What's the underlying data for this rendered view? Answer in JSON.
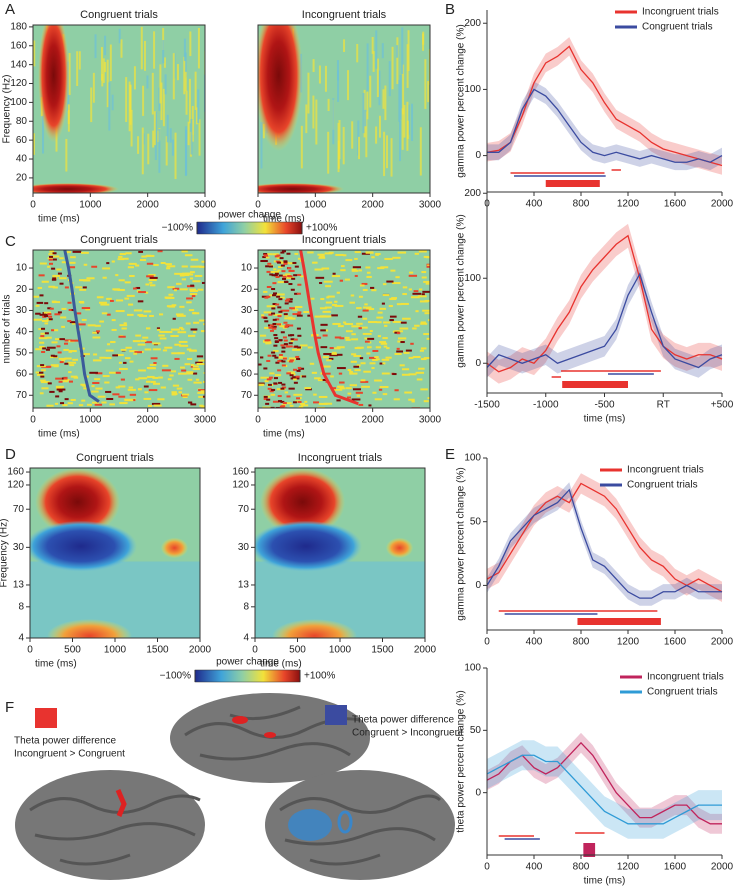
{
  "chart_data": [
    {
      "type": "heatmap",
      "panel": "A",
      "title": "Congruent trials",
      "ylabel": "Frequency (Hz)",
      "xlabel": "time (ms)",
      "xlim": [
        0,
        3000
      ],
      "xticks": [
        0,
        1000,
        2000,
        3000
      ],
      "ylim": [
        4,
        182
      ],
      "yticks": [
        20,
        40,
        60,
        80,
        100,
        120,
        140,
        160,
        180
      ]
    },
    {
      "type": "heatmap",
      "title": "Incongruent trials",
      "xlabel": "time (ms)",
      "xlim": [
        0,
        3000
      ],
      "xticks": [
        0,
        1000,
        2000,
        3000
      ],
      "ylim": [
        4,
        182
      ],
      "colorbar": {
        "title": "power change",
        "ticks": [
          {
            "value": -100,
            "label": "−100%"
          },
          {
            "value": 100,
            "label": "+100%"
          }
        ]
      }
    },
    {
      "type": "line",
      "panel": "B",
      "ylabel": "gamma power percent change (%)",
      "x": [
        0,
        100,
        200,
        300,
        400,
        500,
        600,
        700,
        800,
        900,
        1000,
        1100,
        1200,
        1300,
        1400,
        1500,
        1600,
        1700,
        1800,
        1900,
        2000
      ],
      "xlim": [
        0,
        2000
      ],
      "xticks": [
        0,
        400,
        800,
        1200,
        1600,
        2000
      ],
      "ylim": [
        -55,
        220
      ],
      "yticks": [
        0,
        100,
        200
      ],
      "series": [
        {
          "name": "Incongruent trials",
          "color": "#e8332f",
          "ci": 14,
          "values": [
            5,
            8,
            20,
            60,
            110,
            140,
            150,
            165,
            130,
            110,
            80,
            55,
            45,
            35,
            20,
            10,
            5,
            0,
            -5,
            -10,
            -15
          ]
        },
        {
          "name": "Congruent trials",
          "color": "#3b4ba0",
          "ci": 12,
          "values": [
            5,
            5,
            20,
            70,
            100,
            90,
            70,
            45,
            20,
            5,
            0,
            5,
            0,
            -5,
            0,
            -5,
            -10,
            -10,
            -5,
            -10,
            0
          ]
        }
      ],
      "intervals": [
        {
          "color": "#3b4ba0",
          "start": 230,
          "end": 1010,
          "thick": false
        },
        {
          "color": "#e8332f",
          "start": 200,
          "end": 1000,
          "thick": false
        },
        {
          "color": "#e8332f",
          "start": 500,
          "end": 960,
          "thick": true
        },
        {
          "color": "#e8332f",
          "start": 1060,
          "end": 1140,
          "thick": false
        }
      ]
    },
    {
      "type": "raster",
      "panel": "C",
      "title": "Congruent trials",
      "ylabel": "number of trials",
      "xlabel": "time (ms)",
      "xlim": [
        0,
        3000
      ],
      "xticks": [
        0,
        1000,
        2000,
        3000
      ],
      "ylim": [
        76,
        1.5
      ],
      "yticks": [
        10,
        20,
        30,
        40,
        50,
        60,
        70
      ],
      "rt_line": {
        "color": "#3b5a9a",
        "x": [
          550,
          620,
          680,
          730,
          790,
          850,
          900,
          990,
          1150
        ],
        "y": [
          1,
          10,
          20,
          30,
          40,
          50,
          60,
          70,
          73
        ]
      }
    },
    {
      "type": "raster",
      "title": "Incongruent trials",
      "xlabel": "time (ms)",
      "xlim": [
        0,
        3000
      ],
      "xticks": [
        0,
        1000,
        2000,
        3000
      ],
      "ylim": [
        76,
        1.5
      ],
      "yticks": [
        10,
        20,
        30,
        40,
        50,
        60,
        70
      ],
      "rt_line": {
        "color": "#e8332f",
        "x": [
          740,
          800,
          860,
          920,
          980,
          1050,
          1150,
          1350,
          1750
        ],
        "y": [
          1,
          10,
          20,
          30,
          40,
          50,
          60,
          70,
          74
        ]
      }
    },
    {
      "type": "line",
      "ylabel": "gamma power percent change (%)",
      "xlabel": "time (ms)",
      "x": [
        -1500,
        -1400,
        -1300,
        -1200,
        -1100,
        -1000,
        -900,
        -800,
        -700,
        -600,
        -500,
        -400,
        -300,
        -200,
        -100,
        0,
        100,
        200,
        300,
        400,
        500
      ],
      "xlim": [
        -1500,
        500
      ],
      "xticks": [
        -1500,
        -1000,
        -500,
        {
          "value": 0,
          "label": "RT"
        },
        {
          "value": 500,
          "label": "+500"
        }
      ],
      "ylim": [
        -35,
        205
      ],
      "yticks": [
        0,
        100,
        200
      ],
      "series": [
        {
          "name": "Incongruent trials",
          "color": "#e8332f",
          "ci": 14,
          "values": [
            0,
            -10,
            -5,
            5,
            0,
            15,
            40,
            60,
            90,
            110,
            125,
            140,
            150,
            100,
            40,
            20,
            10,
            5,
            10,
            10,
            5
          ]
        },
        {
          "name": "Congruent trials",
          "color": "#3b4ba0",
          "ci": 12,
          "values": [
            -5,
            10,
            5,
            0,
            5,
            10,
            0,
            5,
            10,
            15,
            20,
            40,
            80,
            105,
            60,
            20,
            5,
            0,
            -5,
            5,
            10
          ]
        }
      ],
      "intervals": [
        {
          "color": "#e8332f",
          "start": -950,
          "end": -870,
          "thick": false
        },
        {
          "color": "#3b4ba0",
          "start": -470,
          "end": -80,
          "thick": false
        },
        {
          "color": "#e8332f",
          "start": -870,
          "end": -20,
          "thick": false
        },
        {
          "color": "#e8332f",
          "start": -860,
          "end": -300,
          "thick": true
        }
      ]
    },
    {
      "type": "heatmap",
      "panel": "D",
      "title": "Congruent trials",
      "ylabel": "Frequency (Hz)",
      "xlabel": "time (ms)",
      "log": true,
      "xlim": [
        0,
        2000
      ],
      "xticks": [
        0,
        500,
        1000,
        1500,
        2000
      ],
      "ylim": [
        4,
        175
      ],
      "yticks": [
        4,
        8,
        13,
        30,
        70,
        120,
        160
      ]
    },
    {
      "type": "heatmap",
      "title": "Incongruent trials",
      "xlabel": "time (ms)",
      "log": true,
      "xlim": [
        0,
        2000
      ],
      "xticks": [
        0,
        500,
        1000,
        1500,
        2000
      ],
      "ylim": [
        4,
        175
      ],
      "yticks": [
        4,
        8,
        13,
        30,
        70,
        120,
        160
      ],
      "colorbar": {
        "title": "power change",
        "ticks": [
          {
            "value": -100,
            "label": "−100%"
          },
          {
            "value": 100,
            "label": "+100%"
          }
        ]
      }
    },
    {
      "type": "line",
      "panel": "E",
      "ylabel": "gamma power percent change (%)",
      "x": [
        0,
        100,
        200,
        300,
        400,
        500,
        600,
        700,
        800,
        900,
        1000,
        1100,
        1200,
        1300,
        1400,
        1500,
        1600,
        1700,
        1800,
        1900,
        2000
      ],
      "xlim": [
        0,
        2000
      ],
      "xticks": [
        0,
        400,
        800,
        1200,
        1600,
        2000
      ],
      "ylim": [
        -35,
        100
      ],
      "yticks": [
        0,
        50,
        100
      ],
      "series": [
        {
          "name": "Incongruent trials",
          "color": "#e8332f",
          "ci": 8,
          "values": [
            5,
            10,
            25,
            40,
            55,
            65,
            70,
            65,
            80,
            75,
            70,
            60,
            45,
            30,
            20,
            15,
            5,
            0,
            5,
            0,
            -5
          ]
        },
        {
          "name": "Congruent trials",
          "color": "#3b4ba0",
          "ci": 6,
          "values": [
            0,
            15,
            35,
            45,
            55,
            60,
            65,
            75,
            45,
            20,
            15,
            5,
            -5,
            -10,
            -10,
            -5,
            -5,
            0,
            -5,
            -5,
            -5
          ]
        }
      ],
      "intervals": [
        {
          "color": "#3b4ba0",
          "start": 150,
          "end": 940,
          "thick": false
        },
        {
          "color": "#e8332f",
          "start": 100,
          "end": 1450,
          "thick": false
        },
        {
          "color": "#e8332f",
          "start": 770,
          "end": 1480,
          "thick": true
        }
      ]
    },
    {
      "type": "line",
      "ylabel": "theta power percent change (%)",
      "xlabel": "time (ms)",
      "x": [
        0,
        100,
        200,
        300,
        400,
        500,
        600,
        700,
        800,
        900,
        1000,
        1100,
        1200,
        1300,
        1400,
        1500,
        1600,
        1700,
        1800,
        1900,
        2000
      ],
      "xlim": [
        0,
        2000
      ],
      "xticks": [
        0,
        400,
        800,
        1200,
        1600,
        2000
      ],
      "ylim": [
        -50,
        100
      ],
      "yticks": [
        0,
        50,
        100
      ],
      "series": [
        {
          "name": "Incongruent trials",
          "color": "#c0245c",
          "ci": 8,
          "values": [
            10,
            15,
            25,
            30,
            20,
            15,
            20,
            30,
            40,
            30,
            15,
            0,
            -10,
            -20,
            -20,
            -15,
            -10,
            -10,
            -20,
            -25,
            -25
          ]
        },
        {
          "name": "Congruent trials",
          "color": "#2f9bd6",
          "ci": 12,
          "values": [
            15,
            20,
            25,
            30,
            30,
            25,
            25,
            15,
            5,
            -5,
            -15,
            -20,
            -25,
            -25,
            -25,
            -25,
            -20,
            -15,
            -10,
            -10,
            -10
          ]
        }
      ],
      "intervals": [
        {
          "color": "#3b4ba0",
          "start": 150,
          "end": 450,
          "thick": false
        },
        {
          "color": "#e8332f",
          "start": 100,
          "end": 400,
          "thick": false
        },
        {
          "color": "#e8332f",
          "start": 750,
          "end": 1000,
          "thick": false
        },
        {
          "color": "#c0245c",
          "start": 820,
          "end": 920,
          "thick": true
        }
      ]
    }
  ],
  "brain_panel": {
    "panel": "F",
    "legend": [
      {
        "color": "#e8332f",
        "lines": [
          "Theta power difference",
          "Incongruent > Congruent"
        ]
      },
      {
        "color": "#3b4ba0",
        "lines": [
          "Theta power difference",
          "Congruent > Incongruent"
        ]
      }
    ]
  }
}
